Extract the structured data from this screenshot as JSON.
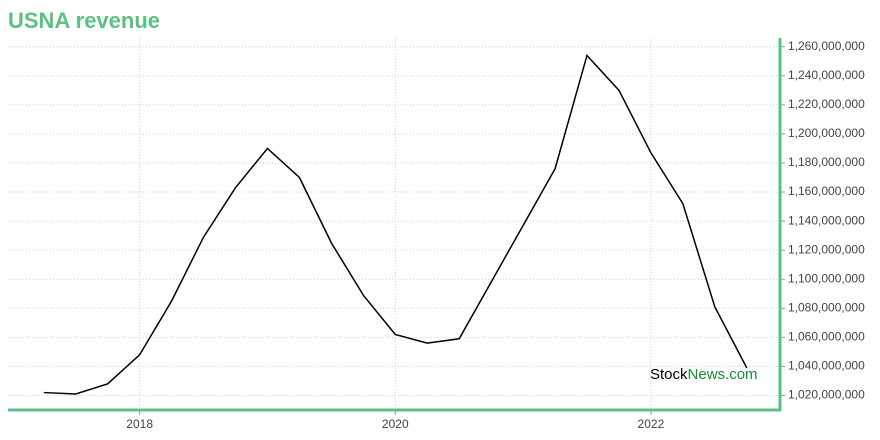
{
  "chart_data": {
    "type": "line",
    "title": "USNA revenue",
    "watermark_prefix": "Stock",
    "watermark_suffix": "News.com",
    "x": [
      2017.25,
      2017.5,
      2017.75,
      2018,
      2018.25,
      2018.5,
      2018.75,
      2019,
      2019.25,
      2019.5,
      2019.75,
      2020,
      2020.25,
      2020.5,
      2020.75,
      2021,
      2021.25,
      2021.5,
      2021.75,
      2022,
      2022.25,
      2022.5,
      2022.75
    ],
    "series": [
      {
        "name": "USNA revenue",
        "color": "#000000",
        "values": [
          1022000000,
          1021000000,
          1028000000,
          1048000000,
          1085000000,
          1129000000,
          1163000000,
          1190000000,
          1170000000,
          1125000000,
          1089000000,
          1062000000,
          1056000000,
          1059000000,
          1098000000,
          1137000000,
          1176000000,
          1254000000,
          1230000000,
          1187000000,
          1152000000,
          1081000000,
          1039000000
        ]
      }
    ],
    "xlim": [
      2016.97,
      2023.01
    ],
    "xticks": [
      2018,
      2020,
      2022
    ],
    "ylim": [
      1010000000,
      1266000000
    ],
    "yticks": [
      {
        "value": 1020000000,
        "label": "1,020,000,000"
      },
      {
        "value": 1040000000,
        "label": "1,040,000,000"
      },
      {
        "value": 1060000000,
        "label": "1,060,000,000"
      },
      {
        "value": 1080000000,
        "label": "1,080,000,000"
      },
      {
        "value": 1100000000,
        "label": "1,100,000,000"
      },
      {
        "value": 1120000000,
        "label": "1,120,000,000"
      },
      {
        "value": 1140000000,
        "label": "1,140,000,000"
      },
      {
        "value": 1160000000,
        "label": "1,160,000,000"
      },
      {
        "value": 1180000000,
        "label": "1,180,000,000"
      },
      {
        "value": 1200000000,
        "label": "1,200,000,000"
      },
      {
        "value": 1220000000,
        "label": "1,220,000,000"
      },
      {
        "value": 1240000000,
        "label": "1,240,000,000"
      },
      {
        "value": 1260000000,
        "label": "1,260,000,000"
      }
    ],
    "grid": true,
    "y_axis_side": "right",
    "axis_color": "#5cbf85"
  }
}
